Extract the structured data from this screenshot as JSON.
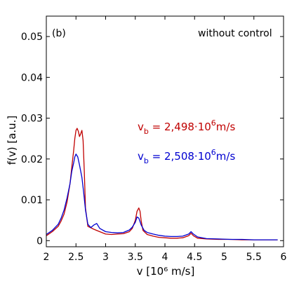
{
  "chart_data": {
    "type": "line",
    "panel_label": "(b)",
    "annotation": "without control",
    "xlabel": "v [10⁶ m/s]",
    "ylabel": "f(v) [a.u.]",
    "xlim": [
      2,
      6
    ],
    "ylim": [
      -0.0015,
      0.055
    ],
    "x_ticks": [
      2,
      2.5,
      3,
      3.5,
      4,
      4.5,
      5,
      5.5,
      6
    ],
    "y_ticks": [
      0,
      0.01,
      0.02,
      0.03,
      0.04,
      0.05
    ],
    "grid": false,
    "colors": {
      "red": "#c00000",
      "blue": "#0000d0"
    },
    "series": [
      {
        "legend": {
          "prefix": "v",
          "sub": "b",
          "value": " = 2,498·10",
          "sup": "6",
          "unit": "m/s"
        },
        "color": "#c00000",
        "x": [
          2.0,
          2.1,
          2.2,
          2.25,
          2.3,
          2.35,
          2.4,
          2.43,
          2.46,
          2.48,
          2.5,
          2.52,
          2.54,
          2.56,
          2.58,
          2.6,
          2.62,
          2.64,
          2.66,
          2.7,
          2.8,
          2.9,
          3.0,
          3.1,
          3.2,
          3.3,
          3.4,
          3.45,
          3.5,
          3.53,
          3.56,
          3.58,
          3.6,
          3.63,
          3.7,
          3.8,
          3.9,
          4.0,
          4.1,
          4.2,
          4.3,
          4.4,
          4.44,
          4.48,
          4.55,
          4.7,
          4.9,
          5.1,
          5.3,
          5.5,
          5.7,
          5.9
        ],
        "y": [
          0.0012,
          0.0022,
          0.0035,
          0.0048,
          0.0065,
          0.0095,
          0.014,
          0.018,
          0.022,
          0.025,
          0.027,
          0.0275,
          0.0268,
          0.0255,
          0.0262,
          0.027,
          0.0245,
          0.017,
          0.008,
          0.0035,
          0.0028,
          0.0022,
          0.0016,
          0.0015,
          0.0016,
          0.0017,
          0.0022,
          0.003,
          0.005,
          0.0072,
          0.008,
          0.0072,
          0.0048,
          0.0025,
          0.0015,
          0.0011,
          0.0008,
          0.0007,
          0.0006,
          0.0006,
          0.0007,
          0.0012,
          0.0018,
          0.0012,
          0.0006,
          0.0004,
          0.0003,
          0.0003,
          0.0002,
          0.0002,
          0.0002,
          0.0002
        ]
      },
      {
        "legend": {
          "prefix": "v",
          "sub": "b",
          "value": " = 2,508·10",
          "sup": "6",
          "unit": "m/s"
        },
        "color": "#0000d0",
        "x": [
          2.0,
          2.1,
          2.2,
          2.25,
          2.3,
          2.35,
          2.4,
          2.43,
          2.46,
          2.48,
          2.5,
          2.53,
          2.56,
          2.6,
          2.63,
          2.66,
          2.7,
          2.75,
          2.8,
          2.85,
          2.9,
          3.0,
          3.1,
          3.2,
          3.3,
          3.4,
          3.45,
          3.5,
          3.53,
          3.56,
          3.6,
          3.65,
          3.7,
          3.8,
          3.9,
          4.0,
          4.1,
          4.2,
          4.3,
          4.4,
          4.44,
          4.48,
          4.55,
          4.7,
          4.9,
          5.1,
          5.3,
          5.5,
          5.7,
          5.9
        ],
        "y": [
          0.0015,
          0.0025,
          0.004,
          0.0055,
          0.0075,
          0.0105,
          0.014,
          0.017,
          0.019,
          0.0205,
          0.0212,
          0.0205,
          0.0185,
          0.0155,
          0.0118,
          0.0075,
          0.004,
          0.0032,
          0.0038,
          0.0042,
          0.003,
          0.0022,
          0.002,
          0.0019,
          0.002,
          0.0026,
          0.0033,
          0.0045,
          0.0058,
          0.0055,
          0.0038,
          0.0025,
          0.002,
          0.0016,
          0.0013,
          0.0011,
          0.001,
          0.001,
          0.0011,
          0.0016,
          0.0022,
          0.0016,
          0.0009,
          0.0005,
          0.0004,
          0.0003,
          0.0003,
          0.0002,
          0.0002,
          0.0002
        ]
      }
    ]
  }
}
